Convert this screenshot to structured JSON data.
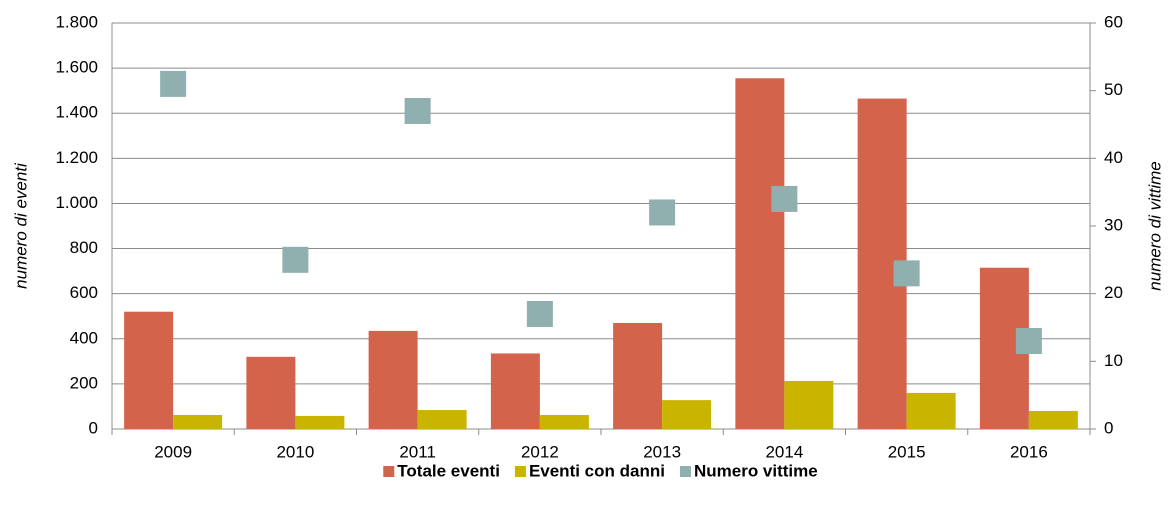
{
  "chart_data": {
    "type": "bar",
    "categories": [
      "2009",
      "2010",
      "2011",
      "2012",
      "2013",
      "2014",
      "2015",
      "2016"
    ],
    "series": [
      {
        "name": "Totale eventi",
        "color": "#d4634b",
        "values": [
          520,
          320,
          435,
          335,
          470,
          1555,
          1465,
          715
        ]
      },
      {
        "name": "Eventi con danni",
        "color": "#c9b400",
        "values": [
          62,
          58,
          84,
          62,
          128,
          213,
          160,
          80
        ]
      },
      {
        "name": "Numero vittime",
        "color": "#8fb0ae",
        "type": "scatter",
        "axis": "y2",
        "values": [
          51,
          25,
          47,
          17,
          32,
          34,
          23,
          13
        ]
      }
    ],
    "ylabel": "numero di eventi",
    "y2label": "numero di vittime",
    "ylim": [
      0,
      1800
    ],
    "yticks": [
      0,
      200,
      400,
      600,
      800,
      {
        "value": 1000,
        "label": "1.000"
      },
      {
        "value": 1200,
        "label": "1.200"
      },
      {
        "value": 1400,
        "label": "1.400"
      },
      {
        "value": 1600,
        "label": "1.600"
      },
      {
        "value": 1800,
        "label": "1.800"
      }
    ],
    "y2lim": [
      0,
      60
    ],
    "y2ticks": [
      0,
      10,
      20,
      30,
      40,
      50,
      60
    ],
    "grid": true,
    "legend": "bottom"
  }
}
